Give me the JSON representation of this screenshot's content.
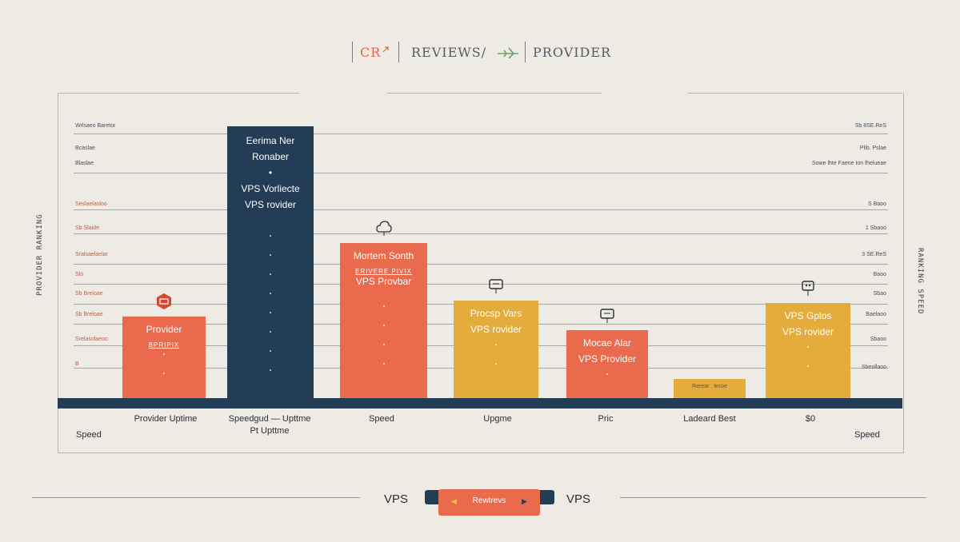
{
  "header": {
    "logo_text": "CR",
    "title": "REVIEWS/",
    "provider": "PROVIDER"
  },
  "colors": {
    "background": "#eeeae4",
    "navy": "#243d57",
    "coral": "#ea6a4d",
    "gold": "#e3ac3c"
  },
  "chart_data": {
    "type": "bar",
    "title": "",
    "left_axis_label": "PROVIDER RANKING",
    "right_axis_label": "RANKING SPEED",
    "left_ticks": [
      "Wrlsaeo Baretor",
      "Bcaslae",
      "Blaslae",
      "Seslaelasloo",
      "Sb Slaide",
      "Sralsaelaelar",
      "Slo",
      "Sb Breloae",
      "Sb Breloae",
      "Srelasolaeoo",
      "B"
    ],
    "right_ticks": [
      "Sb 8SE.ReS",
      "Plib. Pslae",
      "Sowe lhte Faene Ion fhelueae",
      "S Baoo",
      "1 Sbaoo",
      "3 SE.ReS",
      "Baoo",
      "Sbao",
      "Baelaoo",
      "Sbaoo",
      "Sbeollaoo"
    ],
    "bars": [
      {
        "category": "Provider Uptime",
        "value": 30,
        "color": "#ea6a4d",
        "labels": [
          "Provider"
        ],
        "sublabel": "BPRIPIX",
        "icon": "badge-icon"
      },
      {
        "category": "Speedgud — Upttme\nPt Upttme",
        "value": 100,
        "color": "#243d57",
        "labels": [
          "Eerima Ner",
          "Ronaber",
          "•",
          "VPS Vorliecte",
          "VPS rovider"
        ],
        "sublabel": "",
        "icon": ""
      },
      {
        "category": "Speed",
        "value": 57,
        "color": "#ea6a4d",
        "labels": [
          "Mortem Sonth"
        ],
        "sublabel": "ERIVERE PIVIX",
        "labels2": [
          "VPS Provbar"
        ],
        "icon": "cloud-icon"
      },
      {
        "category": "Upgme",
        "value": 36,
        "color": "#e3ac3c",
        "labels": [
          "Procsp Vars",
          "VPS rovider"
        ],
        "sublabel": "",
        "icon": "box-icon"
      },
      {
        "category": "Pric",
        "value": 25,
        "color": "#ea6a4d",
        "labels": [
          "Mocae Alar",
          "VPS Provider"
        ],
        "sublabel": "",
        "icon": "box-icon"
      },
      {
        "category": "Ladeard Best",
        "value": 7,
        "color": "#e3ac3c",
        "labels": [
          "Rerear . lecoe"
        ],
        "sublabel": "",
        "icon": ""
      },
      {
        "category": "$0",
        "value": 35,
        "color": "#e3ac3c",
        "labels": [
          "VPS Gplos",
          "VPS rovider"
        ],
        "sublabel": "",
        "icon": "monitor-icon"
      }
    ],
    "corner_labels": {
      "left": "Speed",
      "right": "Speed"
    },
    "grid": true
  },
  "nav": {
    "left_label": "VPS",
    "button_label": "Rewtrevs",
    "right_label": "VPS"
  }
}
